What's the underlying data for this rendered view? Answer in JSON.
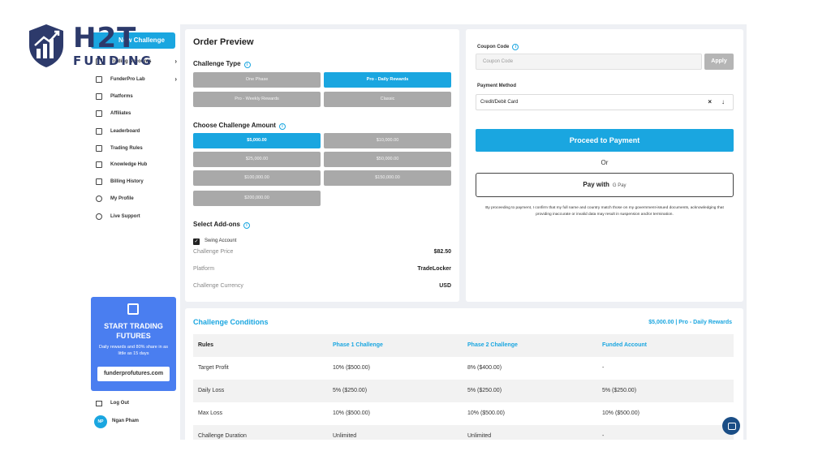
{
  "logo": {
    "mark": "H2T",
    "word": "FUNDING",
    "icon": "shield-chart-icon"
  },
  "sidebar": {
    "new_challenge": "New Challenge",
    "items": [
      {
        "label": "Trading Accounts",
        "icon": "accounts-icon",
        "chevron": "›"
      },
      {
        "label": "FunderPro Lab",
        "icon": "lab-icon",
        "chevron": "›"
      },
      {
        "label": "Platforms",
        "icon": "platforms-icon",
        "chevron": ""
      },
      {
        "label": "Affiliates",
        "icon": "affiliates-icon",
        "chevron": ""
      },
      {
        "label": "Leaderboard",
        "icon": "leaderboard-icon",
        "chevron": ""
      },
      {
        "label": "Trading Rules",
        "icon": "rules-icon",
        "chevron": ""
      },
      {
        "label": "Knowledge Hub",
        "icon": "knowledge-icon",
        "chevron": ""
      },
      {
        "label": "Billing History",
        "icon": "billing-icon",
        "chevron": ""
      },
      {
        "label": "My Profile",
        "icon": "profile-icon",
        "chevron": ""
      },
      {
        "label": "Live Support",
        "icon": "support-icon",
        "chevron": ""
      }
    ],
    "promo": {
      "title": "START TRADING FUTURES",
      "subtitle": "Daily rewards and 80% share in as little as 15 days",
      "link": "funderprofutures.com"
    },
    "logout": "Log Out",
    "user": {
      "initials": "NP",
      "name": "Ngan Pham"
    }
  },
  "order": {
    "title": "Order Preview",
    "challenge_type_label": "Challenge Type",
    "challenge_types": [
      {
        "label": "One Phase",
        "selected": false
      },
      {
        "label": "Pro - Daily Rewards",
        "selected": true
      },
      {
        "label": "Pro - Weekly Rewards",
        "selected": false
      },
      {
        "label": "Classic",
        "selected": false
      }
    ],
    "amount_label": "Choose Challenge Amount",
    "amounts": [
      {
        "label": "$5,000.00",
        "selected": true
      },
      {
        "label": "$10,000.00",
        "selected": false
      },
      {
        "label": "$25,000.00",
        "selected": false
      },
      {
        "label": "$50,000.00",
        "selected": false
      },
      {
        "label": "$100,000.00",
        "selected": false
      },
      {
        "label": "$150,000.00",
        "selected": false
      },
      {
        "label": "$200,000.00",
        "selected": false
      }
    ],
    "addons_label": "Select Add-ons",
    "addon": {
      "label": "Swing Account",
      "checked": true,
      "check": "✓"
    },
    "summary": [
      {
        "label": "Challenge Price",
        "value": "$82.50"
      },
      {
        "label": "Platform",
        "value": "TradeLocker"
      },
      {
        "label": "Challenge Currency",
        "value": "USD"
      }
    ]
  },
  "payment": {
    "coupon_label": "Coupon Code",
    "coupon_placeholder": "Coupon Code",
    "apply": "Apply",
    "method_label": "Payment Method",
    "method_value": "Credit/Debit Card",
    "clear": "×",
    "chevron": "↓",
    "proceed": "Proceed to Payment",
    "or": "Or",
    "gpay_label": "Pay with",
    "gpay_brand": "G Pay",
    "disclaimer": "By proceeding to payment, I confirm that my full name and country match those on my government-issued documents, acknowledging that providing inaccurate or invalid data may result in suspension and/or termination."
  },
  "conditions": {
    "title": "Challenge Conditions",
    "subtitle": "$5,000.00 | Pro - Daily Rewards",
    "headers": [
      "Rules",
      "Phase 1 Challenge",
      "Phase 2 Challenge",
      "Funded Account"
    ],
    "rows": [
      [
        "Target Profit",
        "10% ($500.00)",
        "8% ($400.00)",
        "-"
      ],
      [
        "Daily Loss",
        "5% ($250.00)",
        "5% ($250.00)",
        "5% ($250.00)"
      ],
      [
        "Max Loss",
        "10% ($500.00)",
        "10% ($500.00)",
        "10% ($500.00)"
      ],
      [
        "Challenge Duration",
        "Unlimited",
        "Unlimited",
        "-"
      ]
    ]
  },
  "colors": {
    "accent": "#1aa6e0",
    "promo": "#4a7ef0",
    "brand": "#2d3a6b",
    "chat": "#1b4e86"
  }
}
